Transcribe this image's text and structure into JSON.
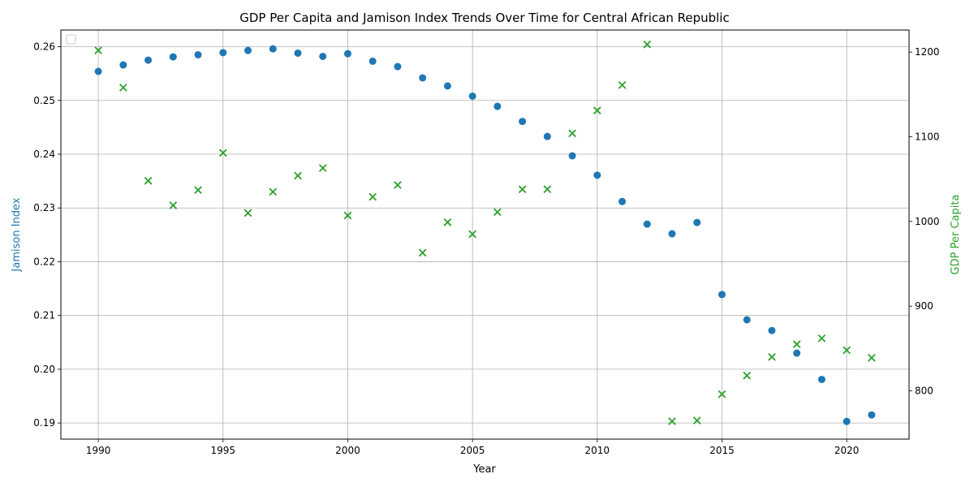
{
  "chart_data": {
    "type": "scatter",
    "title": "GDP Per Capita and Jamison Index Trends Over Time for Central African Republic",
    "xlabel": "Year",
    "ylabel_left": "Jamison Index",
    "ylabel_right": "GDP Per Capita",
    "xlim": [
      1988.5,
      1992.5
    ],
    "x_range": [
      1988.5,
      2022.5
    ],
    "ylim_left": [
      0.187,
      0.2631
    ],
    "ylim_right": [
      743,
      1226
    ],
    "x_ticks": [
      1990,
      1995,
      2000,
      2005,
      2010,
      2015,
      2020
    ],
    "y_ticks_left": [
      0.19,
      0.2,
      0.21,
      0.22,
      0.23,
      0.24,
      0.25,
      0.26
    ],
    "y_ticks_right": [
      800,
      900,
      1000,
      1100,
      1200
    ],
    "grid": true,
    "legend": "top-left (empty)",
    "colors": {
      "jamison": "#1f77b4",
      "gdp": "#2ca02c"
    },
    "series": [
      {
        "name": "Jamison Index",
        "axis": "left",
        "marker": "circle",
        "x": [
          1990,
          1991,
          1992,
          1993,
          1994,
          1995,
          1996,
          1997,
          1998,
          1999,
          2000,
          2001,
          2002,
          2003,
          2004,
          2005,
          2006,
          2007,
          2008,
          2009,
          2010,
          2011,
          2012,
          2013,
          2014,
          2015,
          2016,
          2017,
          2018,
          2019,
          2020,
          2021
        ],
        "y": [
          0.2554,
          0.2566,
          0.2575,
          0.2581,
          0.2585,
          0.2589,
          0.2593,
          0.2596,
          0.2588,
          0.2582,
          0.2587,
          0.2573,
          0.2563,
          0.2542,
          0.2527,
          0.2508,
          0.2489,
          0.2461,
          0.2433,
          0.2397,
          0.2361,
          0.2312,
          0.227,
          0.2252,
          0.2273,
          0.2139,
          0.2092,
          0.2072,
          0.203,
          0.1981,
          0.1903,
          0.1915
        ]
      },
      {
        "name": "GDP Per Capita",
        "axis": "right",
        "marker": "x",
        "x": [
          1990,
          1991,
          1992,
          1993,
          1994,
          1995,
          1996,
          1997,
          1998,
          1999,
          2000,
          2001,
          2002,
          2003,
          2004,
          2005,
          2006,
          2007,
          2008,
          2009,
          2010,
          2011,
          2012,
          2013,
          2014,
          2015,
          2016,
          2017,
          2018,
          2019,
          2020,
          2021
        ],
        "y": [
          1202,
          1158,
          1048,
          1019,
          1037,
          1081,
          1010,
          1035,
          1054,
          1063,
          1007,
          1029,
          1043,
          963,
          999,
          985,
          1011,
          1038,
          1038,
          1104,
          1131,
          1161,
          1209,
          764,
          765,
          796,
          818,
          840,
          855,
          862,
          848,
          839
        ]
      }
    ]
  }
}
